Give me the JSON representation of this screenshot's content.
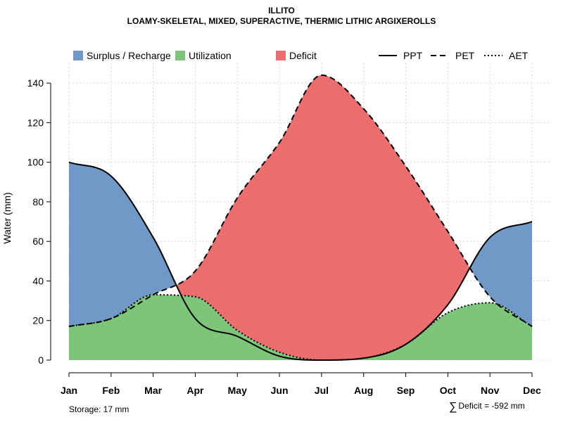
{
  "chart_data": {
    "type": "area",
    "title": "ILLITO",
    "subtitle": "LOAMY-SKELETAL, MIXED, SUPERACTIVE, THERMIC LITHIC ARGIXEROLLS",
    "xlabel": "",
    "ylabel": "Water (mm)",
    "ylim": [
      0,
      150
    ],
    "yticks": [
      0,
      20,
      40,
      60,
      80,
      100,
      120,
      140
    ],
    "grid": true,
    "categories": [
      "Jan",
      "Feb",
      "Mar",
      "Apr",
      "May",
      "Jun",
      "Jul",
      "Aug",
      "Sep",
      "Oct",
      "Nov",
      "Dec"
    ],
    "series": [
      {
        "name": "PPT",
        "style": "solid",
        "values": [
          100,
          93,
          62,
          21,
          12,
          2,
          0,
          1,
          8,
          28,
          62,
          70
        ]
      },
      {
        "name": "PET",
        "style": "dashed",
        "values": [
          17,
          21,
          33,
          45,
          82,
          110,
          144,
          127,
          98,
          65,
          32,
          17
        ]
      },
      {
        "name": "AET",
        "style": "dotted",
        "values": [
          17,
          21,
          33,
          32,
          15,
          4,
          0,
          1,
          8,
          24,
          29,
          17
        ]
      }
    ],
    "legend": {
      "placement": "top",
      "fills": [
        {
          "label": "Surplus / Recharge",
          "color": "#7099C8"
        },
        {
          "label": "Utilization",
          "color": "#7DC578"
        },
        {
          "label": "Deficit",
          "color": "#EC6D6E"
        }
      ],
      "lines": [
        {
          "label": "PPT",
          "style": "solid"
        },
        {
          "label": "PET",
          "style": "dashed"
        },
        {
          "label": "AET",
          "style": "dotted"
        }
      ]
    },
    "annotations": {
      "storage": "Storage: 17 mm",
      "deficit_total": "Deficit = -592 mm"
    }
  }
}
